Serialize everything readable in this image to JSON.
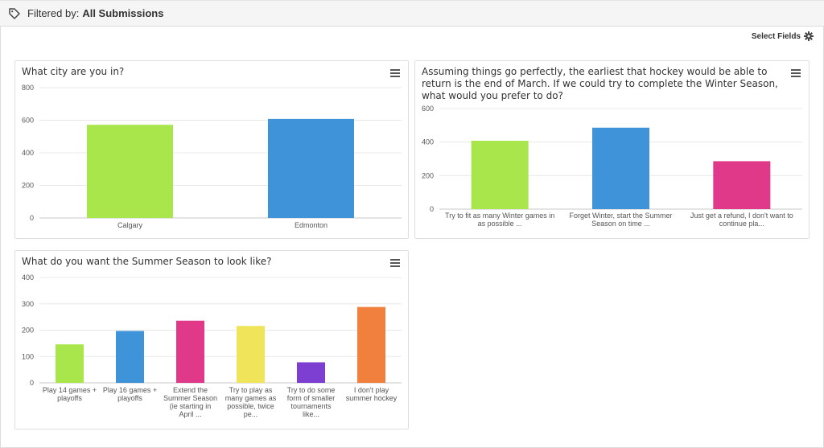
{
  "filter_bar": {
    "label": "Filtered by:",
    "value": "All Submissions",
    "icon": "tag-icon"
  },
  "toolbar": {
    "select_fields_label": "Select Fields",
    "icon": "gear-icon"
  },
  "chart_data": [
    {
      "type": "bar",
      "title": "What city are you in?",
      "categories": [
        [
          "Calgary"
        ],
        [
          "Edmonton"
        ]
      ],
      "values": [
        572,
        608
      ],
      "colors": [
        "#a8e64c",
        "#3e93d9"
      ],
      "yticks": [
        0,
        200,
        400,
        600,
        800
      ],
      "ylim": [
        0,
        800
      ]
    },
    {
      "type": "bar",
      "title": "Assuming things go perfectly, the earliest that hockey would be able to return is the end of March. If we could try to complete the Winter Season, what would you prefer to do?",
      "title_lines": [
        "Assuming things go perfectly, the earliest that hockey would be able to",
        "return is the end of March. If we could try to complete the Winter Season,",
        "what would you prefer to do?"
      ],
      "categories": [
        [
          "Try to fit as many Winter games in",
          "as possible ..."
        ],
        [
          "Forget Winter, start the Summer",
          "Season on time ..."
        ],
        [
          "Just get a refund, I don't want to",
          "continue pla..."
        ]
      ],
      "values": [
        408,
        486,
        286
      ],
      "colors": [
        "#a8e64c",
        "#3e93d9",
        "#e0398a"
      ],
      "yticks": [
        0,
        200,
        400,
        600
      ],
      "ylim": [
        0,
        600
      ]
    },
    {
      "type": "bar",
      "title": "What do you want the Summer Season to look like?",
      "categories": [
        [
          "Play 14 games +",
          "playoffs"
        ],
        [
          "Play 16 games +",
          "playoffs"
        ],
        [
          "Extend the",
          "Summer Season",
          "(ie starting in",
          "April ..."
        ],
        [
          "Try to play as",
          "many games as",
          "possible, twice",
          "pe..."
        ],
        [
          "Try to do some",
          "form of smaller",
          "tournaments",
          "like..."
        ],
        [
          "I don't play",
          "summer hockey"
        ]
      ],
      "values": [
        146,
        197,
        236,
        216,
        78,
        288
      ],
      "colors": [
        "#a8e64c",
        "#3e93d9",
        "#e0398a",
        "#f0e45a",
        "#7c3fd1",
        "#f0803c"
      ],
      "yticks": [
        0,
        100,
        200,
        300,
        400
      ],
      "ylim": [
        0,
        400
      ]
    }
  ]
}
